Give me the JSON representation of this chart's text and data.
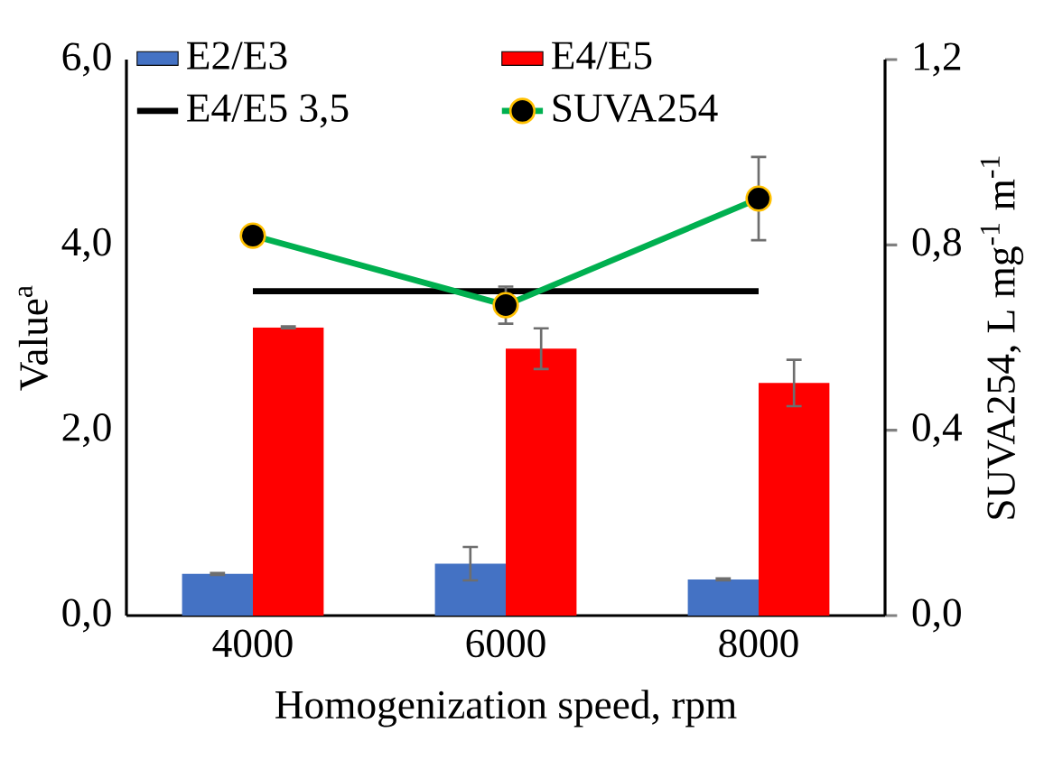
{
  "chart_data": {
    "type": "bar",
    "xlabel": "Homogenization speed, rpm",
    "ylabel": "Value$^{a}$",
    "y2label": "SUVA254, L mg$^{-1}$ m$^{-1}$",
    "categories": [
      "4000",
      "6000",
      "8000"
    ],
    "ylim": [
      0,
      6
    ],
    "yticks": [
      {
        "value": 0,
        "label": "0,0"
      },
      {
        "value": 2,
        "label": "2,0"
      },
      {
        "value": 4,
        "label": "4,0"
      },
      {
        "value": 6,
        "label": "6,0"
      }
    ],
    "y2lim": [
      0,
      1.2
    ],
    "y2ticks": [
      {
        "value": 0,
        "label": "0,0"
      },
      {
        "value": 0.4,
        "label": "0,4"
      },
      {
        "value": 0.8,
        "label": "0,8"
      },
      {
        "value": 1.2,
        "label": "1,2"
      }
    ],
    "legend": "top",
    "grid": false,
    "series": [
      {
        "name": "E2/E3",
        "color": "#4472c4",
        "values": [
          0.45,
          0.56,
          0.39
        ],
        "errors": [
          0.01,
          0.18,
          0.01
        ]
      },
      {
        "name": "E4/E5",
        "color": "#ff0000",
        "values": [
          3.11,
          2.88,
          2.51
        ],
        "errors": [
          0.01,
          0.22,
          0.25
        ]
      },
      {
        "name": "E4/E5 3,5",
        "type": "line",
        "color": "#000000",
        "marker": "none",
        "values": [
          3.5,
          3.5,
          3.5
        ]
      },
      {
        "name": "SUVA254",
        "type": "line",
        "axis": "y2",
        "color": "#00b050",
        "marker": "circle",
        "values": [
          0.82,
          0.67,
          0.9
        ],
        "errors": [
          null,
          0.04,
          0.09
        ]
      }
    ]
  }
}
